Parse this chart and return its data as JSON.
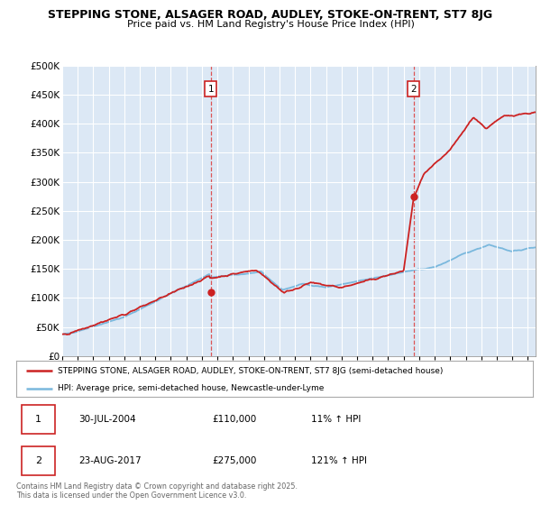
{
  "title": "STEPPING STONE, ALSAGER ROAD, AUDLEY, STOKE-ON-TRENT, ST7 8JG",
  "subtitle": "Price paid vs. HM Land Registry's House Price Index (HPI)",
  "ylim": [
    0,
    500000
  ],
  "yticks": [
    0,
    50000,
    100000,
    150000,
    200000,
    250000,
    300000,
    350000,
    400000,
    450000,
    500000
  ],
  "ytick_labels": [
    "£0",
    "£50K",
    "£100K",
    "£150K",
    "£200K",
    "£250K",
    "£300K",
    "£350K",
    "£400K",
    "£450K",
    "£500K"
  ],
  "xlim_start": 1995.0,
  "xlim_end": 2025.5,
  "xticks": [
    1995,
    1996,
    1997,
    1998,
    1999,
    2000,
    2001,
    2002,
    2003,
    2004,
    2005,
    2006,
    2007,
    2008,
    2009,
    2010,
    2011,
    2012,
    2013,
    2014,
    2015,
    2016,
    2017,
    2018,
    2019,
    2020,
    2021,
    2022,
    2023,
    2024,
    2025
  ],
  "hpi_color": "#7ab8dd",
  "price_color": "#cc2222",
  "marker1_date": 2004.575,
  "marker1_price": 110000,
  "marker2_date": 2017.645,
  "marker2_price": 275000,
  "vline1_date": 2004.575,
  "vline2_date": 2017.645,
  "legend_label1": "STEPPING STONE, ALSAGER ROAD, AUDLEY, STOKE-ON-TRENT, ST7 8JG (semi-detached house)",
  "legend_label2": "HPI: Average price, semi-detached house, Newcastle-under-Lyme",
  "table_row1": [
    "1",
    "30-JUL-2004",
    "£110,000",
    "11% ↑ HPI"
  ],
  "table_row2": [
    "2",
    "23-AUG-2017",
    "£275,000",
    "121% ↑ HPI"
  ],
  "footer": "Contains HM Land Registry data © Crown copyright and database right 2025.\nThis data is licensed under the Open Government Licence v3.0.",
  "plot_bg_color": "#dce8f5",
  "fig_bg_color": "#ffffff",
  "grid_color": "#ffffff",
  "vline_color": "#dd4444"
}
